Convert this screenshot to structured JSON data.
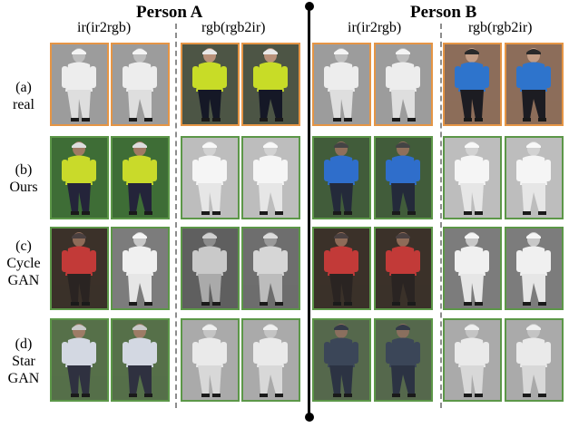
{
  "persons": {
    "a": "Person A",
    "b": "Person B"
  },
  "columns": {
    "a_ir": "ir(ir2rgb)",
    "a_rgb": "rgb(rgb2ir)",
    "b_ir": "ir(ir2rgb)",
    "b_rgb": "rgb(rgb2ir)"
  },
  "rows": [
    {
      "tag": "(a)",
      "name": "real"
    },
    {
      "tag": "(b)",
      "name": "Ours"
    },
    {
      "tag": "(c)",
      "name": "Cycle",
      "name2": "GAN"
    },
    {
      "tag": "(d)",
      "name": "Star",
      "name2": "GAN"
    }
  ],
  "colors": {
    "real_border": "#e59545",
    "generated_border": "#5c9748"
  }
}
